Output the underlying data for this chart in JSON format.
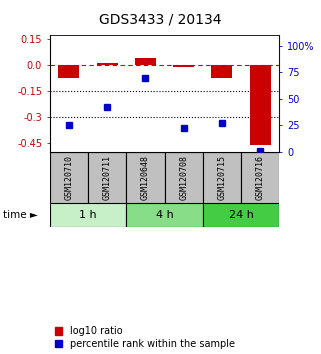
{
  "title": "GDS3433 / 20134",
  "samples": [
    "GSM120710",
    "GSM120711",
    "GSM120648",
    "GSM120708",
    "GSM120715",
    "GSM120716"
  ],
  "groups": [
    {
      "label": "1 h",
      "indices": [
        0,
        1
      ],
      "color": "#c8f0c8"
    },
    {
      "label": "4 h",
      "indices": [
        2,
        3
      ],
      "color": "#88dd88"
    },
    {
      "label": "24 h",
      "indices": [
        4,
        5
      ],
      "color": "#44cc44"
    }
  ],
  "log10_ratio": [
    -0.075,
    0.01,
    0.04,
    -0.01,
    -0.075,
    -0.46
  ],
  "percentile_rank": [
    25,
    42,
    70,
    22,
    27,
    1
  ],
  "ylim_left": [
    -0.5,
    0.17
  ],
  "ylim_right": [
    0,
    110
  ],
  "yticks_left": [
    0.15,
    0.0,
    -0.15,
    -0.3,
    -0.45
  ],
  "yticks_right": [
    100,
    75,
    50,
    25,
    0
  ],
  "hlines": [
    -0.15,
    -0.3
  ],
  "bar_color": "#cc0000",
  "dot_color": "#0000cc",
  "legend_bar_label": "log10 ratio",
  "legend_dot_label": "percentile rank within the sample",
  "bar_width": 0.55,
  "sample_box_color": "#c0c0c0",
  "title_fontsize": 10,
  "tick_fontsize": 7,
  "sample_fontsize": 6,
  "group_fontsize": 8,
  "legend_fontsize": 7
}
